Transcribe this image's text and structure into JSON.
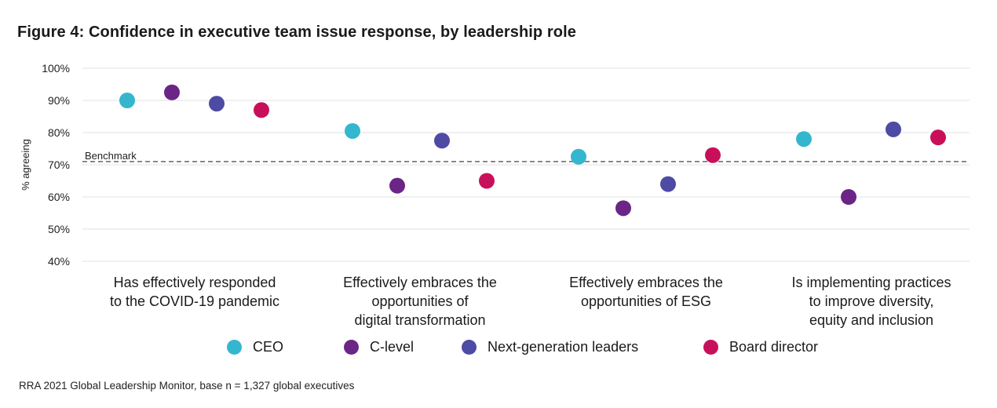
{
  "title": "Figure 4: Confidence in executive team issue response, by leadership role",
  "source": "RRA 2021 Global Leadership Monitor, base n = 1,327 global executives",
  "chart_data": {
    "type": "scatter",
    "title": "Figure 4: Confidence in executive team issue response, by leadership role",
    "ylabel": "% agreeing",
    "ylim": [
      40,
      100
    ],
    "yticks": [
      "100%",
      "90%",
      "80%",
      "70%",
      "60%",
      "50%",
      "40%"
    ],
    "ytick_values": [
      100,
      90,
      80,
      70,
      60,
      50,
      40
    ],
    "grid": true,
    "legend_position": "bottom",
    "benchmark": {
      "label": "Benchmark",
      "value": 71
    },
    "categories": [
      [
        "Has effectively responded",
        "to the COVID-19 pandemic"
      ],
      [
        "Effectively embraces the",
        "opportunities of",
        "digital transformation"
      ],
      [
        "Effectively embraces the",
        "opportunities of ESG"
      ],
      [
        "Is implementing practices",
        "to improve diversity,",
        "equity and inclusion"
      ]
    ],
    "series": [
      {
        "name": "CEO",
        "color": "#35B6CF",
        "values": [
          90,
          80.5,
          72.5,
          78
        ]
      },
      {
        "name": "C-level",
        "color": "#6B2586",
        "values": [
          92.5,
          63.5,
          56.5,
          60
        ]
      },
      {
        "name": "Next-generation leaders",
        "color": "#4D4BA3",
        "values": [
          89,
          77.5,
          64,
          81
        ]
      },
      {
        "name": "Board director",
        "color": "#C8105A",
        "values": [
          87,
          65,
          73,
          78.5
        ]
      }
    ]
  }
}
